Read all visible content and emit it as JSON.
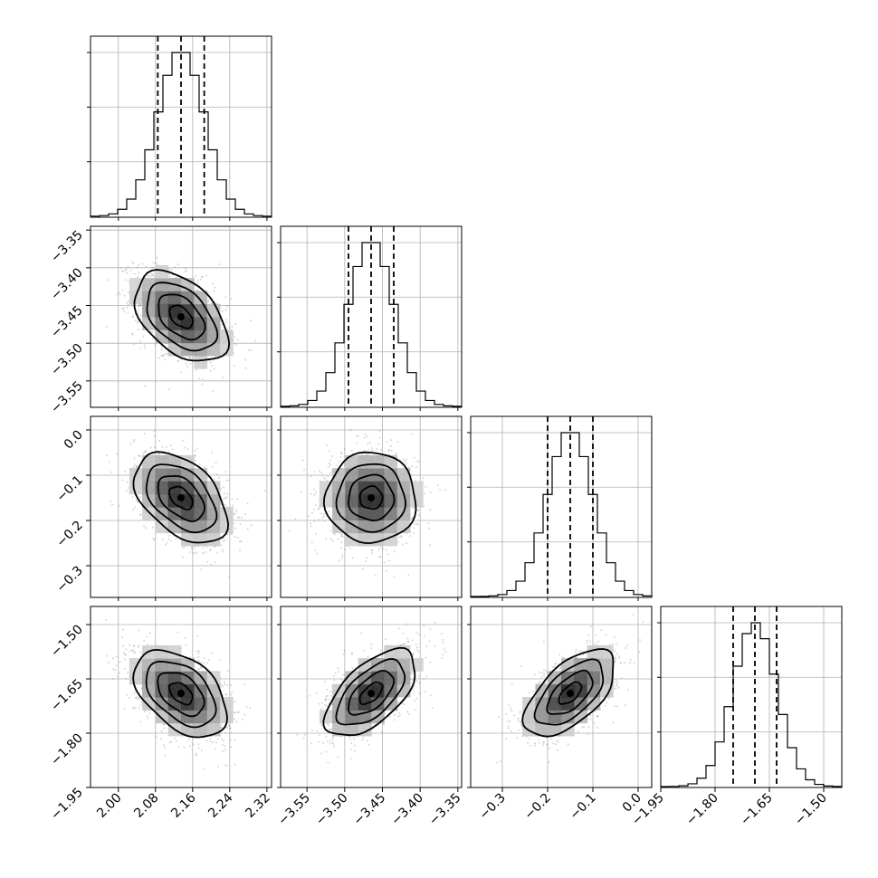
{
  "chart_data": {
    "type": "corner",
    "parameters": [
      {
        "index": 0,
        "median": 2.135,
        "q16": 2.085,
        "q84": 2.185,
        "sigma": 0.05,
        "range": [
          1.94,
          2.33
        ],
        "ticks": [
          2.0,
          2.08,
          2.16,
          2.24,
          2.32
        ],
        "tick_labels": [
          "2.00",
          "2.08",
          "2.16",
          "2.24",
          "2.32"
        ]
      },
      {
        "index": 1,
        "median": -3.465,
        "q16": -3.495,
        "q84": -3.435,
        "sigma": 0.03,
        "range": [
          -3.585,
          -3.345
        ],
        "ticks": [
          -3.55,
          -3.5,
          -3.45,
          -3.4,
          -3.35
        ],
        "tick_labels": [
          "−3.55",
          "−3.50",
          "−3.45",
          "−3.40",
          "−3.35"
        ]
      },
      {
        "index": 2,
        "median": -0.15,
        "q16": -0.2,
        "q84": -0.1,
        "sigma": 0.05,
        "range": [
          -0.37,
          0.03
        ],
        "ticks": [
          -0.3,
          -0.2,
          -0.1,
          0.0
        ],
        "tick_labels": [
          "−0.3",
          "−0.2",
          "−0.1",
          "0.0"
        ]
      },
      {
        "index": 3,
        "median": -1.69,
        "q16": -1.75,
        "q84": -1.63,
        "sigma": 0.06,
        "range": [
          -1.95,
          -1.45
        ],
        "ticks": [
          -1.95,
          -1.8,
          -1.65,
          -1.5
        ],
        "tick_labels": [
          "−1.95",
          "−1.80",
          "−1.65",
          "−1.50"
        ]
      }
    ],
    "correlations": [
      {
        "x": 0,
        "y": 1,
        "rho": -0.45
      },
      {
        "x": 0,
        "y": 2,
        "rho": -0.45
      },
      {
        "x": 1,
        "y": 2,
        "rho": 0.0
      },
      {
        "x": 0,
        "y": 3,
        "rho": -0.45
      },
      {
        "x": 1,
        "y": 3,
        "rho": 0.6
      },
      {
        "x": 2,
        "y": 3,
        "rho": 0.6
      }
    ],
    "contour_levels_sigma": [
      0.5,
      1.0,
      1.5,
      2.0
    ],
    "quantiles": [
      0.16,
      0.5,
      0.84
    ],
    "grid": true,
    "colors": {
      "points": "#8a8a8a",
      "lines": "#000000",
      "grid": "#b0b0b0"
    }
  }
}
